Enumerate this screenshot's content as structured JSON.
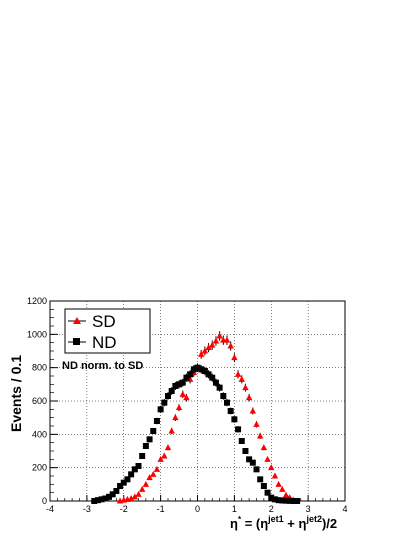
{
  "chart_data": {
    "type": "scatter",
    "title": "",
    "xlabel": "η* = (η^jet1 + η^jet2)/2",
    "ylabel": "Events / 0.1",
    "xlim": [
      -4,
      4
    ],
    "ylim": [
      0,
      1200
    ],
    "xticks": [
      "-4",
      "-3",
      "-2",
      "-1",
      "0",
      "1",
      "2",
      "3",
      "4"
    ],
    "yticks": [
      "0",
      "200",
      "400",
      "600",
      "800",
      "1000",
      "1200"
    ],
    "grid": true,
    "legend": {
      "placement": "top-left",
      "entries": [
        "SD",
        "ND"
      ]
    },
    "annotation": "ND norm. to SD",
    "series": [
      {
        "name": "SD",
        "color": "#ff0000",
        "marker": "triangle",
        "x": [
          -2.1,
          -2.0,
          -1.9,
          -1.8,
          -1.7,
          -1.6,
          -1.5,
          -1.4,
          -1.3,
          -1.2,
          -1.1,
          -1.0,
          -0.9,
          -0.8,
          -0.7,
          -0.6,
          -0.5,
          -0.4,
          -0.3,
          -0.2,
          -0.1,
          0.0,
          0.1,
          0.2,
          0.3,
          0.4,
          0.5,
          0.6,
          0.7,
          0.8,
          0.9,
          1.0,
          1.1,
          1.2,
          1.3,
          1.4,
          1.5,
          1.6,
          1.7,
          1.8,
          1.9,
          2.0,
          2.1,
          2.2,
          2.3,
          2.4,
          2.5,
          2.6,
          2.7
        ],
        "y": [
          0,
          5,
          10,
          15,
          25,
          40,
          70,
          100,
          140,
          160,
          190,
          250,
          270,
          320,
          420,
          500,
          560,
          640,
          620,
          730,
          770,
          800,
          880,
          900,
          920,
          935,
          960,
          990,
          965,
          965,
          930,
          860,
          760,
          730,
          680,
          620,
          540,
          460,
          390,
          320,
          250,
          200,
          150,
          100,
          70,
          35,
          20,
          5,
          0
        ]
      },
      {
        "name": "ND",
        "color": "#000000",
        "marker": "square",
        "x": [
          -2.8,
          -2.7,
          -2.6,
          -2.5,
          -2.4,
          -2.3,
          -2.2,
          -2.1,
          -2.0,
          -1.9,
          -1.8,
          -1.7,
          -1.6,
          -1.5,
          -1.4,
          -1.3,
          -1.2,
          -1.1,
          -1.0,
          -0.9,
          -0.8,
          -0.7,
          -0.6,
          -0.5,
          -0.4,
          -0.3,
          -0.2,
          -0.1,
          0.0,
          0.1,
          0.2,
          0.3,
          0.4,
          0.5,
          0.6,
          0.7,
          0.8,
          0.9,
          1.0,
          1.1,
          1.2,
          1.3,
          1.4,
          1.5,
          1.6,
          1.7,
          1.8,
          1.9,
          2.0,
          2.1,
          2.2,
          2.3,
          2.4,
          2.5,
          2.6,
          2.7
        ],
        "y": [
          0,
          5,
          10,
          15,
          25,
          40,
          60,
          90,
          110,
          130,
          160,
          190,
          210,
          270,
          330,
          370,
          420,
          480,
          550,
          590,
          630,
          660,
          690,
          700,
          710,
          740,
          760,
          790,
          800,
          790,
          780,
          760,
          740,
          710,
          680,
          630,
          590,
          540,
          490,
          430,
          360,
          300,
          250,
          230,
          190,
          130,
          90,
          50,
          20,
          10,
          5,
          3,
          2,
          1,
          0,
          0
        ]
      }
    ]
  }
}
